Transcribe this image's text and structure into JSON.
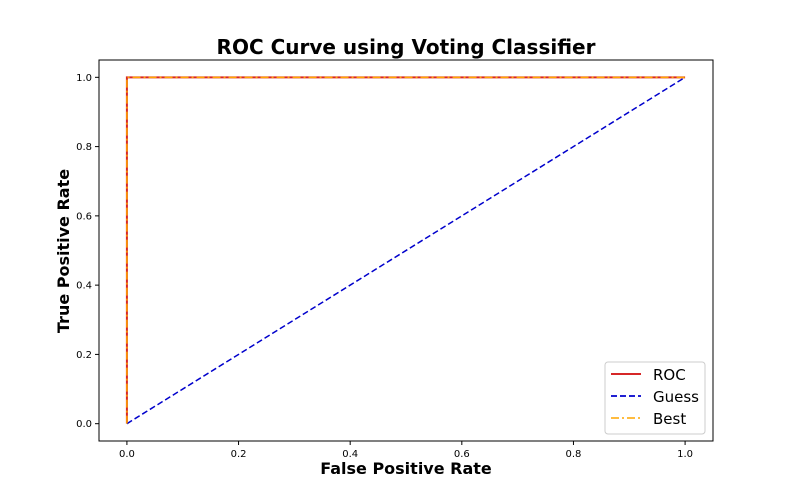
{
  "chart_data": {
    "type": "line",
    "title": "ROC Curve using Voting Classifier",
    "xlabel": "False Positive Rate",
    "ylabel": "True Positive Rate",
    "xlim": [
      -0.05,
      1.05
    ],
    "ylim": [
      -0.05,
      1.05
    ],
    "xticks": [
      "0.0",
      "0.2",
      "0.4",
      "0.6",
      "0.8",
      "1.0"
    ],
    "yticks": [
      "0.0",
      "0.2",
      "0.4",
      "0.6",
      "0.8",
      "1.0"
    ],
    "grid": false,
    "legend_position": "bottom-right",
    "series": [
      {
        "name": "ROC",
        "x": [
          0,
          0,
          1
        ],
        "y": [
          0,
          1,
          1
        ],
        "color": "#d62728",
        "style": "solid"
      },
      {
        "name": "Guess",
        "x": [
          0,
          1
        ],
        "y": [
          0,
          1
        ],
        "color": "#0000cc",
        "style": "dashed"
      },
      {
        "name": "Best",
        "x": [
          0,
          0,
          1
        ],
        "y": [
          0,
          1,
          1
        ],
        "color": "#ffa500",
        "style": "dashdot"
      }
    ]
  }
}
